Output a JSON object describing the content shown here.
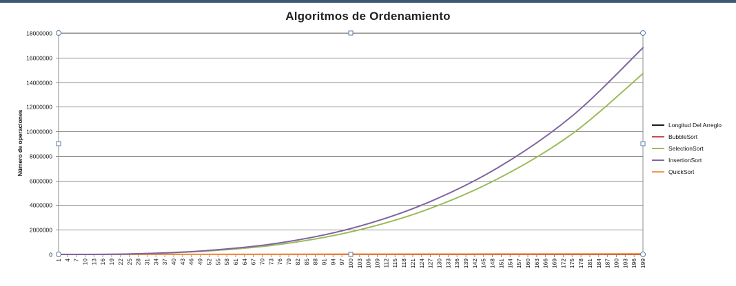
{
  "chart_data": {
    "type": "line",
    "title": "Algoritmos de Ordenamiento",
    "xlabel": "",
    "ylabel": "Número de operaciones",
    "ylim": [
      0,
      18000000
    ],
    "yticks": [
      0,
      2000000,
      4000000,
      6000000,
      8000000,
      10000000,
      12000000,
      14000000,
      16000000,
      18000000
    ],
    "ytick_labels": [
      "0",
      "2000000",
      "4000000",
      "6000000",
      "8000000",
      "10000000",
      "12000000",
      "14000000",
      "16000000",
      "18000000"
    ],
    "x_start": 1,
    "x_end": 199,
    "x_step": 3,
    "xlim": [
      1,
      199
    ],
    "grid": "horizontal",
    "legend_position": "right",
    "x": [
      1,
      25,
      50,
      75,
      100,
      125,
      150,
      175,
      199
    ],
    "series": [
      {
        "name": "Longitud Del Arreglo",
        "color": "#1a1a1a",
        "values": [
          0,
          0,
          0,
          0,
          0,
          0,
          0,
          0,
          0
        ]
      },
      {
        "name": "BubbleSort",
        "color": "#c0504d",
        "values": [
          0,
          0,
          0,
          0,
          0,
          0,
          0,
          0,
          0
        ]
      },
      {
        "name": "SelectionSort",
        "color": "#9bbb59",
        "values": [
          0,
          30000,
          250000,
          780000,
          1830000,
          3570000,
          6170000,
          9800000,
          14700000
        ]
      },
      {
        "name": "InsertionSort",
        "color": "#8064a2",
        "values": [
          0,
          34000,
          290000,
          900000,
          2100000,
          4100000,
          7070000,
          11250000,
          16800000
        ]
      },
      {
        "name": "QuickSort",
        "color": "#f79646",
        "values": [
          0,
          4000,
          10000,
          17000,
          25000,
          32000,
          40000,
          48000,
          55000
        ]
      }
    ]
  }
}
